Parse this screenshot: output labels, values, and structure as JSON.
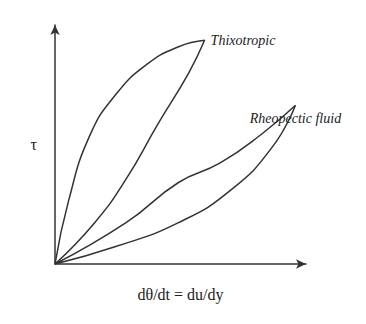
{
  "chart_data": {
    "type": "line",
    "x_label": "dθ/dt = du/dy",
    "y_label": "τ",
    "xlim": [
      0,
      10
    ],
    "ylim": [
      0,
      10
    ],
    "tick_labels": false,
    "grid": false,
    "series": [
      {
        "name": "Thixotropic",
        "color": "#333333",
        "x": [
          0,
          0.54,
          1.38,
          2.42,
          3.67,
          4.92,
          5.96,
          5.33,
          4.08,
          2.83,
          1.58,
          0
        ],
        "values": [
          0,
          2.64,
          5.36,
          7.09,
          8.36,
          9.09,
          9.36,
          8.0,
          5.82,
          3.55,
          1.73,
          0
        ]
      },
      {
        "name": "Rheopectic fluid",
        "color": "#333333",
        "x": [
          0,
          2.42,
          4.92,
          7.0,
          8.67,
          9.58,
          8.25,
          6.58,
          4.92,
          2.83,
          0
        ],
        "values": [
          0,
          0.73,
          1.73,
          3.09,
          4.91,
          6.64,
          5.45,
          4.23,
          3.41,
          1.73,
          0
        ]
      }
    ]
  }
}
